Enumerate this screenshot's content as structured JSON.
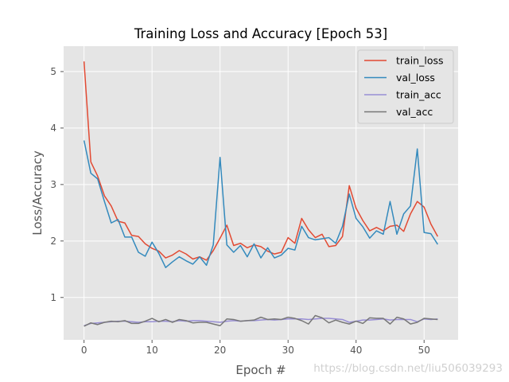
{
  "chart_data": {
    "type": "line",
    "title": "Training Loss and Accuracy [Epoch 53]",
    "xlabel": "Epoch #",
    "ylabel": "Loss/Accuracy",
    "xlim": [
      -3,
      55
    ],
    "ylim": [
      0.25,
      5.45
    ],
    "xticks": [
      0,
      10,
      20,
      30,
      40,
      50
    ],
    "yticks": [
      1,
      2,
      3,
      4,
      5
    ],
    "grid": true,
    "legend_position": "upper right",
    "style": "ggplot",
    "x": [
      0,
      1,
      2,
      3,
      4,
      5,
      6,
      7,
      8,
      9,
      10,
      11,
      12,
      13,
      14,
      15,
      16,
      17,
      18,
      19,
      20,
      21,
      22,
      23,
      24,
      25,
      26,
      27,
      28,
      29,
      30,
      31,
      32,
      33,
      34,
      35,
      36,
      37,
      38,
      39,
      40,
      41,
      42,
      43,
      44,
      45,
      46,
      47,
      48,
      49,
      50,
      51,
      52
    ],
    "series": [
      {
        "name": "train_loss",
        "color": "#e24a33",
        "values": [
          5.18,
          3.4,
          3.15,
          2.8,
          2.62,
          2.35,
          2.32,
          2.1,
          2.08,
          1.95,
          1.87,
          1.82,
          1.7,
          1.75,
          1.83,
          1.77,
          1.68,
          1.72,
          1.66,
          1.83,
          2.05,
          2.28,
          1.92,
          1.96,
          1.88,
          1.93,
          1.9,
          1.82,
          1.77,
          1.8,
          2.06,
          1.96,
          2.4,
          2.2,
          2.06,
          2.12,
          1.9,
          1.92,
          2.08,
          2.98,
          2.58,
          2.36,
          2.18,
          2.24,
          2.18,
          2.26,
          2.28,
          2.17,
          2.48,
          2.7,
          2.6,
          2.3,
          2.08
        ]
      },
      {
        "name": "val_loss",
        "color": "#348abd",
        "values": [
          3.78,
          3.2,
          3.1,
          2.7,
          2.32,
          2.38,
          2.07,
          2.07,
          1.8,
          1.73,
          1.98,
          1.78,
          1.53,
          1.63,
          1.72,
          1.65,
          1.59,
          1.72,
          1.57,
          1.93,
          3.48,
          1.93,
          1.8,
          1.92,
          1.72,
          1.95,
          1.7,
          1.88,
          1.7,
          1.75,
          1.87,
          1.84,
          2.26,
          2.06,
          2.02,
          2.04,
          2.06,
          1.96,
          2.26,
          2.83,
          2.4,
          2.25,
          2.05,
          2.18,
          2.12,
          2.7,
          2.12,
          2.48,
          2.62,
          3.63,
          2.15,
          2.13,
          1.94
        ]
      },
      {
        "name": "train_acc",
        "color": "#988ed5",
        "values": [
          0.5,
          0.54,
          0.55,
          0.56,
          0.57,
          0.58,
          0.58,
          0.57,
          0.56,
          0.57,
          0.57,
          0.58,
          0.58,
          0.57,
          0.59,
          0.58,
          0.59,
          0.59,
          0.58,
          0.57,
          0.56,
          0.58,
          0.59,
          0.58,
          0.59,
          0.59,
          0.6,
          0.61,
          0.6,
          0.61,
          0.62,
          0.62,
          0.62,
          0.61,
          0.62,
          0.63,
          0.63,
          0.62,
          0.61,
          0.56,
          0.58,
          0.6,
          0.6,
          0.61,
          0.62,
          0.6,
          0.61,
          0.61,
          0.61,
          0.57,
          0.62,
          0.61,
          0.62
        ]
      },
      {
        "name": "val_acc",
        "color": "#777777",
        "values": [
          0.49,
          0.55,
          0.52,
          0.56,
          0.58,
          0.57,
          0.59,
          0.54,
          0.54,
          0.58,
          0.63,
          0.57,
          0.61,
          0.56,
          0.61,
          0.59,
          0.55,
          0.56,
          0.56,
          0.53,
          0.5,
          0.62,
          0.61,
          0.58,
          0.59,
          0.6,
          0.65,
          0.61,
          0.62,
          0.61,
          0.65,
          0.63,
          0.59,
          0.53,
          0.68,
          0.64,
          0.55,
          0.6,
          0.56,
          0.53,
          0.58,
          0.54,
          0.64,
          0.63,
          0.63,
          0.53,
          0.65,
          0.62,
          0.53,
          0.56,
          0.63,
          0.62,
          0.61
        ]
      }
    ]
  },
  "watermark": "https://blog.csdn.net/liu506039293"
}
